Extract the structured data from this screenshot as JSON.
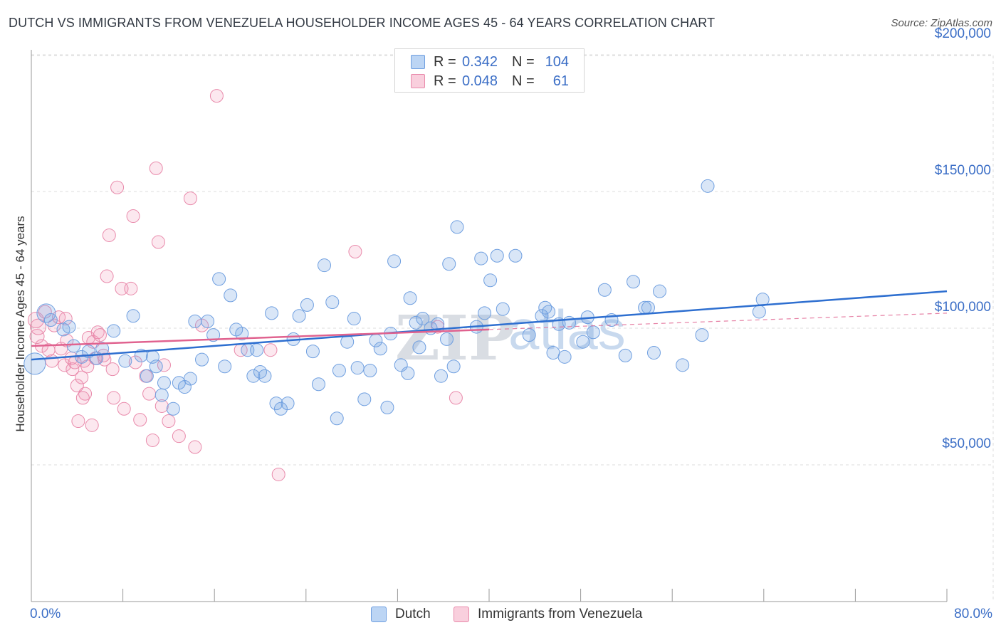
{
  "header": {
    "title": "DUTCH VS IMMIGRANTS FROM VENEZUELA HOUSEHOLDER INCOME AGES 45 - 64 YEARS CORRELATION CHART",
    "source": "Source: ZipAtlas.com"
  },
  "watermark": {
    "zip": "ZIP",
    "atlas": "atlas"
  },
  "legend": {
    "rows": [
      {
        "r_label": "R =",
        "r_value": "0.342",
        "n_label": "N =",
        "n_value": "104",
        "color": "#a9c8f0",
        "border": "#6f9fe0"
      },
      {
        "r_label": "R =",
        "r_value": "0.048",
        "n_label": "N =",
        "n_value": "61",
        "color": "#f7bfd1",
        "border": "#e98aab"
      }
    ]
  },
  "bottom_legend": {
    "items": [
      {
        "label": "Dutch",
        "color": "#a9c8f0",
        "border": "#6f9fe0"
      },
      {
        "label": "Immigrants from Venezuela",
        "color": "#f7bfd1",
        "border": "#e98aab"
      }
    ]
  },
  "colors": {
    "dutch_fill": "rgba(120,165,225,0.28)",
    "dutch_stroke": "#6f9fe0",
    "dutch_line": "#2e6fd0",
    "venezuela_fill": "rgba(240,150,180,0.22)",
    "venezuela_stroke": "#e98aab",
    "venezuela_line": "#e0628f",
    "grid": "#dedede",
    "axis_text": "#3b6ec6"
  },
  "chart_data": {
    "type": "scatter",
    "title": "DUTCH VS IMMIGRANTS FROM VENEZUELA HOUSEHOLDER INCOME AGES 45 - 64 YEARS CORRELATION CHART",
    "xlabel": "",
    "ylabel": "Householder Income Ages 45 - 64 years",
    "xlim": [
      0,
      80
    ],
    "ylim": [
      0,
      210000
    ],
    "x_tick_labels": [
      "0.0%",
      "80.0%"
    ],
    "y_ticks": [
      50000,
      100000,
      150000,
      200000
    ],
    "y_tick_labels": [
      "$50,000",
      "$100,000",
      "$150,000",
      "$200,000"
    ],
    "grid": true,
    "legend_placement": "top-center",
    "series": [
      {
        "name": "Dutch",
        "R": 0.342,
        "N": 104,
        "trend": {
          "x": [
            0,
            80
          ],
          "y": [
            88500,
            113500
          ],
          "style": "solid"
        },
        "points": [
          [
            0.3,
            87000,
            16
          ],
          [
            1.3,
            105500,
            14
          ],
          [
            1.7,
            103000,
            10
          ],
          [
            2.8,
            99500,
            10
          ],
          [
            3.3,
            100500,
            10
          ],
          [
            3.7,
            93500,
            10
          ],
          [
            4.4,
            89500,
            10
          ],
          [
            5.0,
            91500,
            10
          ],
          [
            5.7,
            89000,
            10
          ],
          [
            6.2,
            92500,
            10
          ],
          [
            7.2,
            99000,
            10
          ],
          [
            8.2,
            88000,
            10
          ],
          [
            8.9,
            104500,
            10
          ],
          [
            9.6,
            90000,
            10
          ],
          [
            10.1,
            82500,
            10
          ],
          [
            10.6,
            89500,
            10
          ],
          [
            10.9,
            86000,
            10
          ],
          [
            11.4,
            75500,
            10
          ],
          [
            11.6,
            80000,
            10
          ],
          [
            12.4,
            70500,
            10
          ],
          [
            12.9,
            80000,
            10
          ],
          [
            13.4,
            78500,
            10
          ],
          [
            13.9,
            81500,
            10
          ],
          [
            14.3,
            102500,
            10
          ],
          [
            14.9,
            88500,
            10
          ],
          [
            15.4,
            102500,
            10
          ],
          [
            15.9,
            97500,
            10
          ],
          [
            16.4,
            118000,
            10
          ],
          [
            16.9,
            86000,
            10
          ],
          [
            17.4,
            112000,
            10
          ],
          [
            17.9,
            99500,
            10
          ],
          [
            18.4,
            98000,
            10
          ],
          [
            18.9,
            92000,
            10
          ],
          [
            19.4,
            82500,
            10
          ],
          [
            19.7,
            92000,
            10
          ],
          [
            20.0,
            84000,
            10
          ],
          [
            20.4,
            82500,
            10
          ],
          [
            21.0,
            105500,
            10
          ],
          [
            21.4,
            72500,
            10
          ],
          [
            21.8,
            70500,
            10
          ],
          [
            22.4,
            72500,
            10
          ],
          [
            22.9,
            96000,
            10
          ],
          [
            23.4,
            104500,
            10
          ],
          [
            24.1,
            108500,
            10
          ],
          [
            24.6,
            91500,
            10
          ],
          [
            25.1,
            79500,
            10
          ],
          [
            25.6,
            123000,
            10
          ],
          [
            26.3,
            109500,
            10
          ],
          [
            26.7,
            67000,
            10
          ],
          [
            26.9,
            84500,
            10
          ],
          [
            27.6,
            95000,
            10
          ],
          [
            28.2,
            103500,
            10
          ],
          [
            28.5,
            85500,
            10
          ],
          [
            29.1,
            74000,
            10
          ],
          [
            29.6,
            84500,
            10
          ],
          [
            30.1,
            95500,
            10
          ],
          [
            30.5,
            92500,
            10
          ],
          [
            31.1,
            71000,
            10
          ],
          [
            31.4,
            98000,
            10
          ],
          [
            31.7,
            124500,
            10
          ],
          [
            32.3,
            86500,
            10
          ],
          [
            32.9,
            83500,
            10
          ],
          [
            33.1,
            111000,
            10
          ],
          [
            33.6,
            102000,
            10
          ],
          [
            34.2,
            103500,
            10
          ],
          [
            34.9,
            100000,
            10
          ],
          [
            35.5,
            101500,
            10
          ],
          [
            35.8,
            82500,
            10
          ],
          [
            36.3,
            96000,
            10
          ],
          [
            36.5,
            123500,
            10
          ],
          [
            36.9,
            86000,
            10
          ],
          [
            37.2,
            137000,
            10
          ],
          [
            38.9,
            100500,
            10
          ],
          [
            39.3,
            125500,
            10
          ],
          [
            39.6,
            105500,
            10
          ],
          [
            40.1,
            117500,
            10
          ],
          [
            40.7,
            126500,
            10
          ],
          [
            41.2,
            107000,
            10
          ],
          [
            42.3,
            126500,
            10
          ],
          [
            43.5,
            97500,
            10
          ],
          [
            44.6,
            104500,
            10
          ],
          [
            44.9,
            107500,
            10
          ],
          [
            45.6,
            91000,
            10
          ],
          [
            46.1,
            101500,
            10
          ],
          [
            46.6,
            89500,
            10
          ],
          [
            48.2,
            95000,
            10
          ],
          [
            48.6,
            104000,
            10
          ],
          [
            49.1,
            98500,
            10
          ],
          [
            50.1,
            114000,
            10
          ],
          [
            50.7,
            103000,
            10
          ],
          [
            51.9,
            90000,
            10
          ],
          [
            52.6,
            117000,
            10
          ],
          [
            53.6,
            107500,
            10
          ],
          [
            53.9,
            107500,
            10
          ],
          [
            54.4,
            91000,
            10
          ],
          [
            54.9,
            113500,
            10
          ],
          [
            56.9,
            86500,
            10
          ],
          [
            58.6,
            97500,
            10
          ],
          [
            59.1,
            152000,
            10
          ],
          [
            63.6,
            106000,
            10
          ],
          [
            63.9,
            110500,
            10
          ],
          [
            33.9,
            93000,
            10
          ],
          [
            47.0,
            102000,
            10
          ],
          [
            45.2,
            106000,
            10
          ]
        ]
      },
      {
        "name": "Immigrants from Venezuela",
        "R": 0.048,
        "N": 61,
        "trend": {
          "x": [
            0,
            40
          ],
          "y": [
            93500,
            99500
          ],
          "style": "solid",
          "extension": {
            "x": [
              40,
              80
            ],
            "y": [
              99500,
              105500
            ],
            "style": "dashed"
          }
        },
        "points": [
          [
            0.4,
            103000,
            12
          ],
          [
            0.5,
            97000,
            11
          ],
          [
            0.6,
            100500,
            12
          ],
          [
            0.9,
            93500,
            10
          ],
          [
            1.2,
            106000,
            10
          ],
          [
            1.5,
            92000,
            10
          ],
          [
            1.8,
            88000,
            10
          ],
          [
            2.0,
            101000,
            10
          ],
          [
            2.4,
            104000,
            10
          ],
          [
            2.6,
            92500,
            10
          ],
          [
            2.9,
            86500,
            10
          ],
          [
            3.1,
            95500,
            10
          ],
          [
            3.5,
            89000,
            10
          ],
          [
            3.6,
            85000,
            10
          ],
          [
            3.8,
            87500,
            10
          ],
          [
            4.0,
            79000,
            10
          ],
          [
            4.1,
            66000,
            10
          ],
          [
            4.4,
            82000,
            10
          ],
          [
            4.6,
            88000,
            10
          ],
          [
            4.7,
            76000,
            10
          ],
          [
            4.9,
            86000,
            10
          ],
          [
            5.0,
            96500,
            10
          ],
          [
            5.3,
            64500,
            10
          ],
          [
            5.4,
            95000,
            10
          ],
          [
            5.6,
            89000,
            10
          ],
          [
            5.8,
            98500,
            10
          ],
          [
            6.0,
            97500,
            10
          ],
          [
            6.3,
            90000,
            10
          ],
          [
            6.6,
            119000,
            10
          ],
          [
            6.8,
            134000,
            10
          ],
          [
            7.1,
            85000,
            10
          ],
          [
            7.2,
            74500,
            10
          ],
          [
            7.5,
            151500,
            10
          ],
          [
            7.9,
            114500,
            10
          ],
          [
            8.1,
            70500,
            10
          ],
          [
            8.7,
            114500,
            10
          ],
          [
            8.9,
            141000,
            10
          ],
          [
            9.1,
            87500,
            10
          ],
          [
            9.5,
            66500,
            10
          ],
          [
            10.0,
            82500,
            10
          ],
          [
            10.3,
            76000,
            10
          ],
          [
            10.6,
            59000,
            10
          ],
          [
            10.9,
            158500,
            10
          ],
          [
            11.1,
            131500,
            10
          ],
          [
            11.4,
            71500,
            10
          ],
          [
            11.6,
            86500,
            10
          ],
          [
            12.0,
            66000,
            10
          ],
          [
            12.9,
            60500,
            10
          ],
          [
            13.9,
            147500,
            10
          ],
          [
            14.3,
            56500,
            10
          ],
          [
            14.9,
            101000,
            10
          ],
          [
            16.2,
            185000,
            10
          ],
          [
            18.3,
            92000,
            10
          ],
          [
            20.9,
            92000,
            10
          ],
          [
            21.6,
            46500,
            10
          ],
          [
            28.3,
            128000,
            10
          ],
          [
            35.5,
            100500,
            10
          ],
          [
            37.1,
            74500,
            10
          ],
          [
            3.0,
            103500,
            10
          ],
          [
            6.4,
            88500,
            10
          ],
          [
            4.5,
            74500,
            10
          ]
        ]
      }
    ]
  }
}
